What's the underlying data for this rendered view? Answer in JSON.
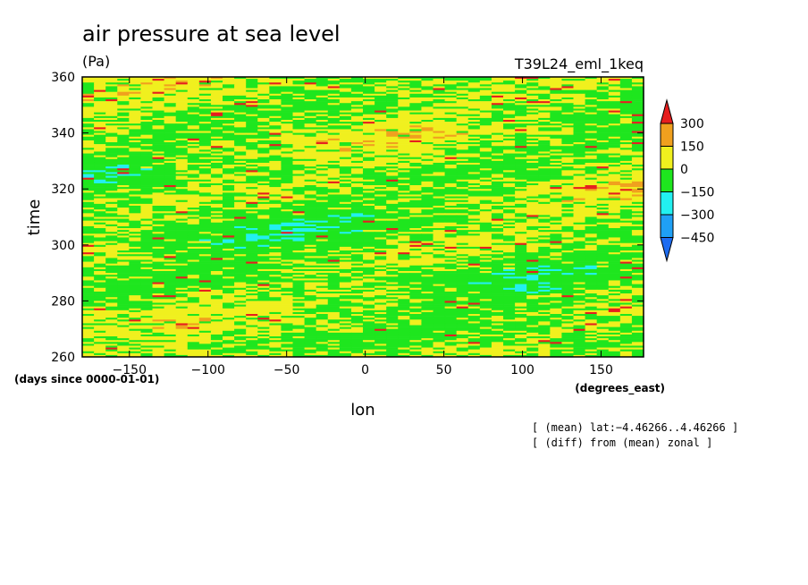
{
  "chart_data": {
    "type": "heatmap",
    "title": "air pressure at sea level",
    "units": "(Pa)",
    "dataset": "T39L24_eml_1keq",
    "xlabel": "lon",
    "ylabel": "time",
    "x_units": "(degrees_east)",
    "y_units": "(days since 0000-01-01)",
    "xlim": [
      -180,
      177
    ],
    "ylim": [
      260,
      360
    ],
    "x_ticks": [
      -150,
      -100,
      -50,
      0,
      50,
      100,
      150
    ],
    "y_ticks": [
      260,
      280,
      300,
      320,
      340,
      360
    ],
    "colorbar": {
      "levels": [
        -450,
        -300,
        -150,
        0,
        150,
        300
      ],
      "labels": [
        "300",
        "150",
        "0",
        "−150",
        "−300",
        "−450"
      ],
      "colors": [
        "#1e6cf0",
        "#1fa0f5",
        "#22f0f0",
        "#1ee61e",
        "#f0f01e",
        "#f0a01e",
        "#e61e1e"
      ]
    },
    "annotations": [
      "[ (mean) lat:−4.46266..4.46266 ]",
      "[ (diff) from (mean) zonal ]"
    ]
  }
}
